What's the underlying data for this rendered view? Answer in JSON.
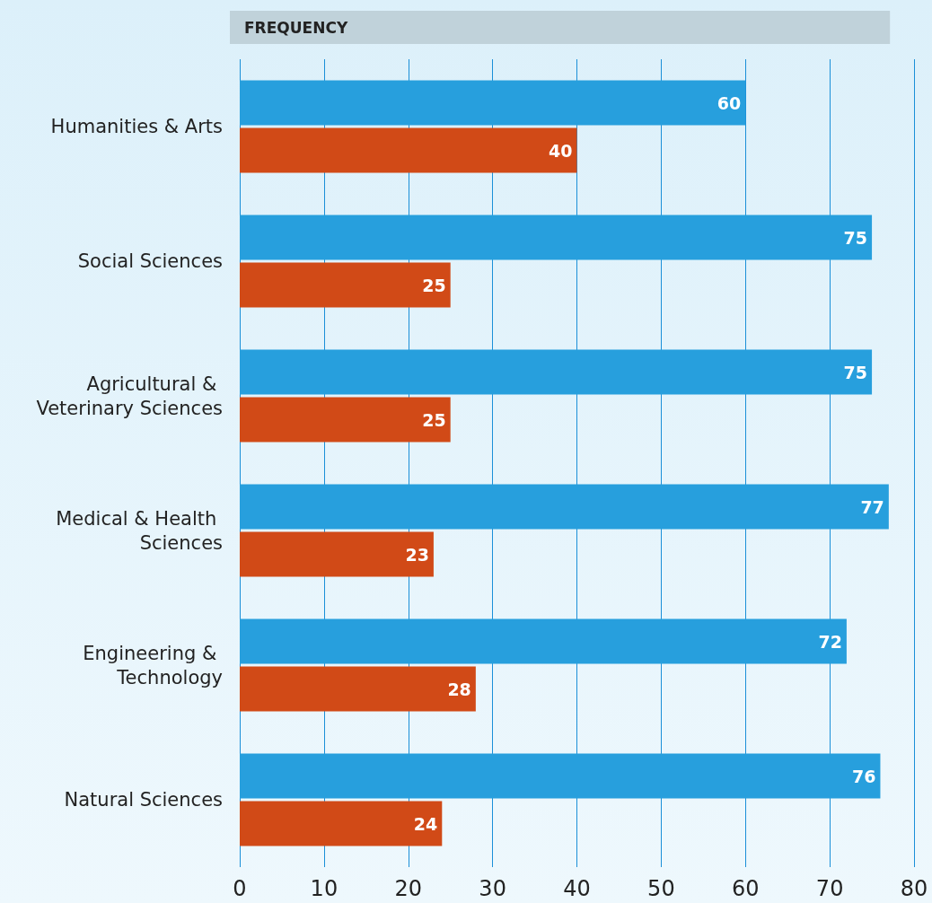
{
  "chart_data": {
    "type": "bar",
    "orientation": "horizontal",
    "title": "FREQUENCY",
    "categories": [
      "Humanities & Arts",
      "Social Sciences",
      "Agricultural & Veterinary Sciences",
      "Medical & Health Sciences",
      "Engineering & Technology",
      "Natural Sciences"
    ],
    "series": [
      {
        "color": "#279fdd",
        "values": [
          60,
          75,
          75,
          77,
          72,
          76
        ]
      },
      {
        "color": "#d14a17",
        "values": [
          40,
          25,
          25,
          23,
          28,
          24
        ]
      }
    ],
    "xlim": [
      0,
      80
    ],
    "xticks": [
      0,
      10,
      20,
      30,
      40,
      50,
      60,
      70,
      80
    ],
    "grid": "x",
    "data_labels": true
  }
}
